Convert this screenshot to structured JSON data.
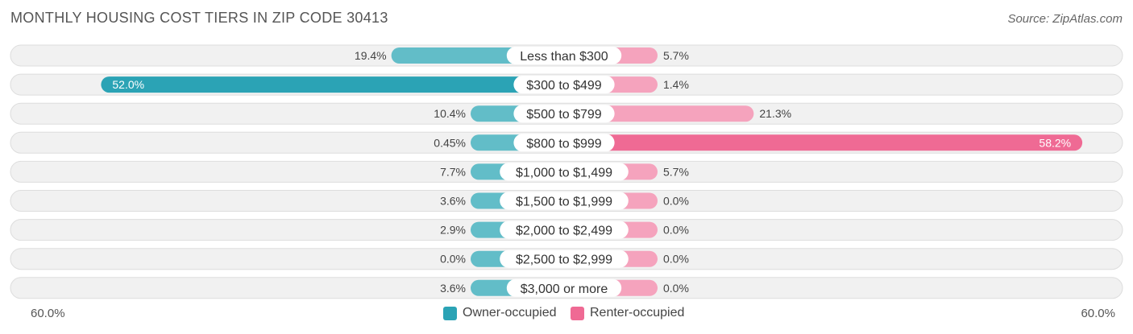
{
  "header": {
    "title": "MONTHLY HOUSING COST TIERS IN ZIP CODE 30413",
    "source": "Source: ZipAtlas.com"
  },
  "axis": {
    "left_label": "60.0%",
    "right_label": "60.0%"
  },
  "legend": {
    "owner_label": "Owner-occupied",
    "renter_label": "Renter-occupied"
  },
  "colors": {
    "owner": "#62bdc8",
    "owner_strong": "#2ba3b5",
    "renter": "#f5a3bd",
    "renter_strong": "#ef6a94",
    "row_bg": "#f1f1f1",
    "row_border": "#dddddd"
  },
  "chart_data": {
    "type": "bar",
    "orientation": "horizontal-diverging",
    "xlim": [
      -60,
      60
    ],
    "categories": [
      "Less than $300",
      "$300 to $499",
      "$500 to $799",
      "$800 to $999",
      "$1,000 to $1,499",
      "$1,500 to $1,999",
      "$2,000 to $2,499",
      "$2,500 to $2,999",
      "$3,000 or more"
    ],
    "series": [
      {
        "name": "Owner-occupied",
        "values": [
          19.4,
          52.0,
          10.4,
          0.45,
          7.7,
          3.6,
          2.9,
          0.0,
          3.6
        ],
        "labels": [
          "19.4%",
          "52.0%",
          "10.4%",
          "0.45%",
          "7.7%",
          "3.6%",
          "2.9%",
          "0.0%",
          "3.6%"
        ]
      },
      {
        "name": "Renter-occupied",
        "values": [
          5.7,
          1.4,
          21.3,
          58.2,
          5.7,
          0.0,
          0.0,
          0.0,
          0.0
        ],
        "labels": [
          "5.7%",
          "1.4%",
          "21.3%",
          "58.2%",
          "5.7%",
          "0.0%",
          "0.0%",
          "0.0%",
          "0.0%"
        ]
      }
    ]
  }
}
